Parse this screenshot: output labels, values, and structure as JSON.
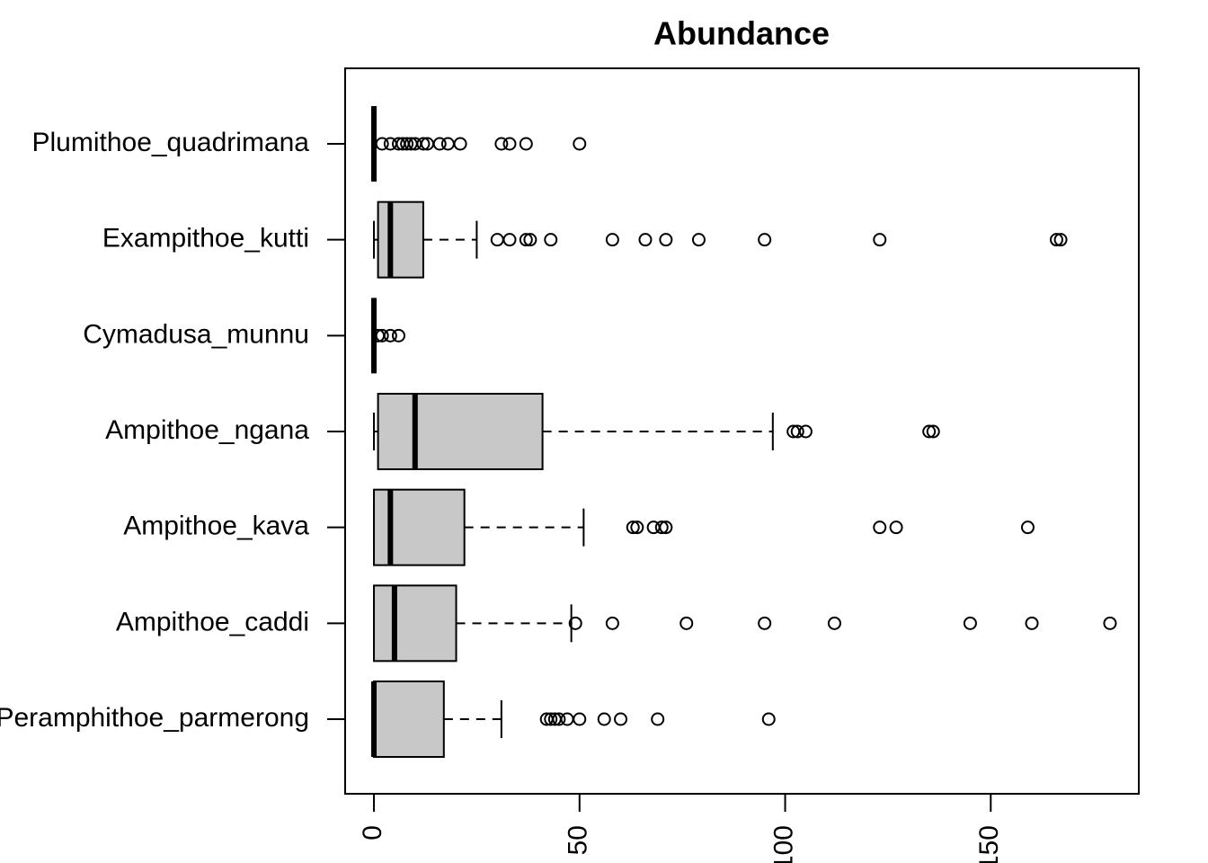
{
  "chart_data": {
    "type": "boxplot",
    "title": "Abundance",
    "orientation": "horizontal",
    "categories": [
      "Peramphithoe_parmerong",
      "Ampithoe_caddi",
      "Ampithoe_kava",
      "Ampithoe_ngana",
      "Cymadusa_munnu",
      "Exampithoe_kutti",
      "Plumithoe_quadrimana"
    ],
    "box_color": "#c8c8c8",
    "boxes": [
      {
        "whislo": 0,
        "q1": 0,
        "med": 0,
        "q3": 17,
        "whishi": 31,
        "fliers": [
          42,
          43,
          44,
          45,
          47,
          50,
          56,
          60,
          69,
          96
        ]
      },
      {
        "whislo": 0,
        "q1": 0,
        "med": 5,
        "q3": 20,
        "whishi": 48,
        "fliers": [
          49,
          58,
          76,
          95,
          112,
          145,
          160,
          179
        ]
      },
      {
        "whislo": 0,
        "q1": 0,
        "med": 4,
        "q3": 22,
        "whishi": 51,
        "fliers": [
          63,
          64,
          68,
          70,
          71,
          123,
          127,
          159
        ]
      },
      {
        "whislo": 0,
        "q1": 1,
        "med": 10,
        "q3": 41,
        "whishi": 97,
        "fliers": [
          102,
          103,
          105,
          135,
          136
        ]
      },
      {
        "whislo": 0,
        "q1": 0,
        "med": 0,
        "q3": 0,
        "whishi": 0,
        "fliers": [
          1,
          2,
          4,
          6
        ]
      },
      {
        "whislo": 0,
        "q1": 1,
        "med": 4,
        "q3": 12,
        "whishi": 25,
        "fliers": [
          30,
          33,
          37,
          38,
          43,
          58,
          66,
          71,
          79,
          95,
          123,
          166,
          167
        ]
      },
      {
        "whislo": 0,
        "q1": 0,
        "med": 0,
        "q3": 0,
        "whishi": 0,
        "fliers": [
          2,
          4,
          6,
          7,
          8,
          9,
          10,
          12,
          13,
          16,
          18,
          21,
          31,
          33,
          37,
          50
        ]
      }
    ],
    "xlim": [
      -7,
      186
    ],
    "xticks": [
      0,
      50,
      100,
      150
    ]
  }
}
